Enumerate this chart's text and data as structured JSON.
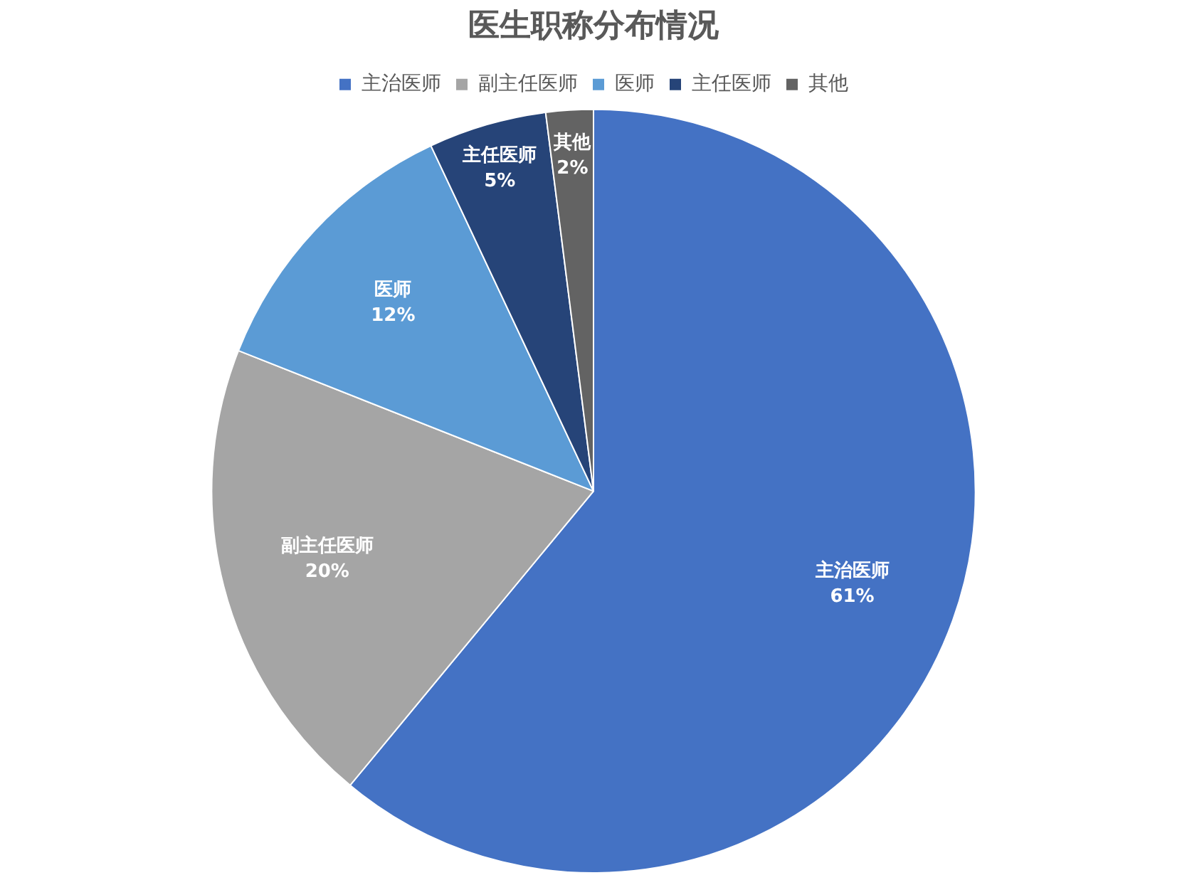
{
  "chart_data": {
    "type": "pie",
    "title": "医生职称分布情况",
    "categories": [
      "主治医师",
      "副主任医师",
      "医师",
      "主任医师",
      "其他"
    ],
    "values": [
      61,
      20,
      12,
      5,
      2
    ],
    "value_labels": [
      "61%",
      "20%",
      "12%",
      "5%",
      "2%"
    ],
    "colors": [
      "#4472c4",
      "#a5a5a5",
      "#5b9bd5",
      "#264478",
      "#636363"
    ],
    "legend": "top"
  }
}
